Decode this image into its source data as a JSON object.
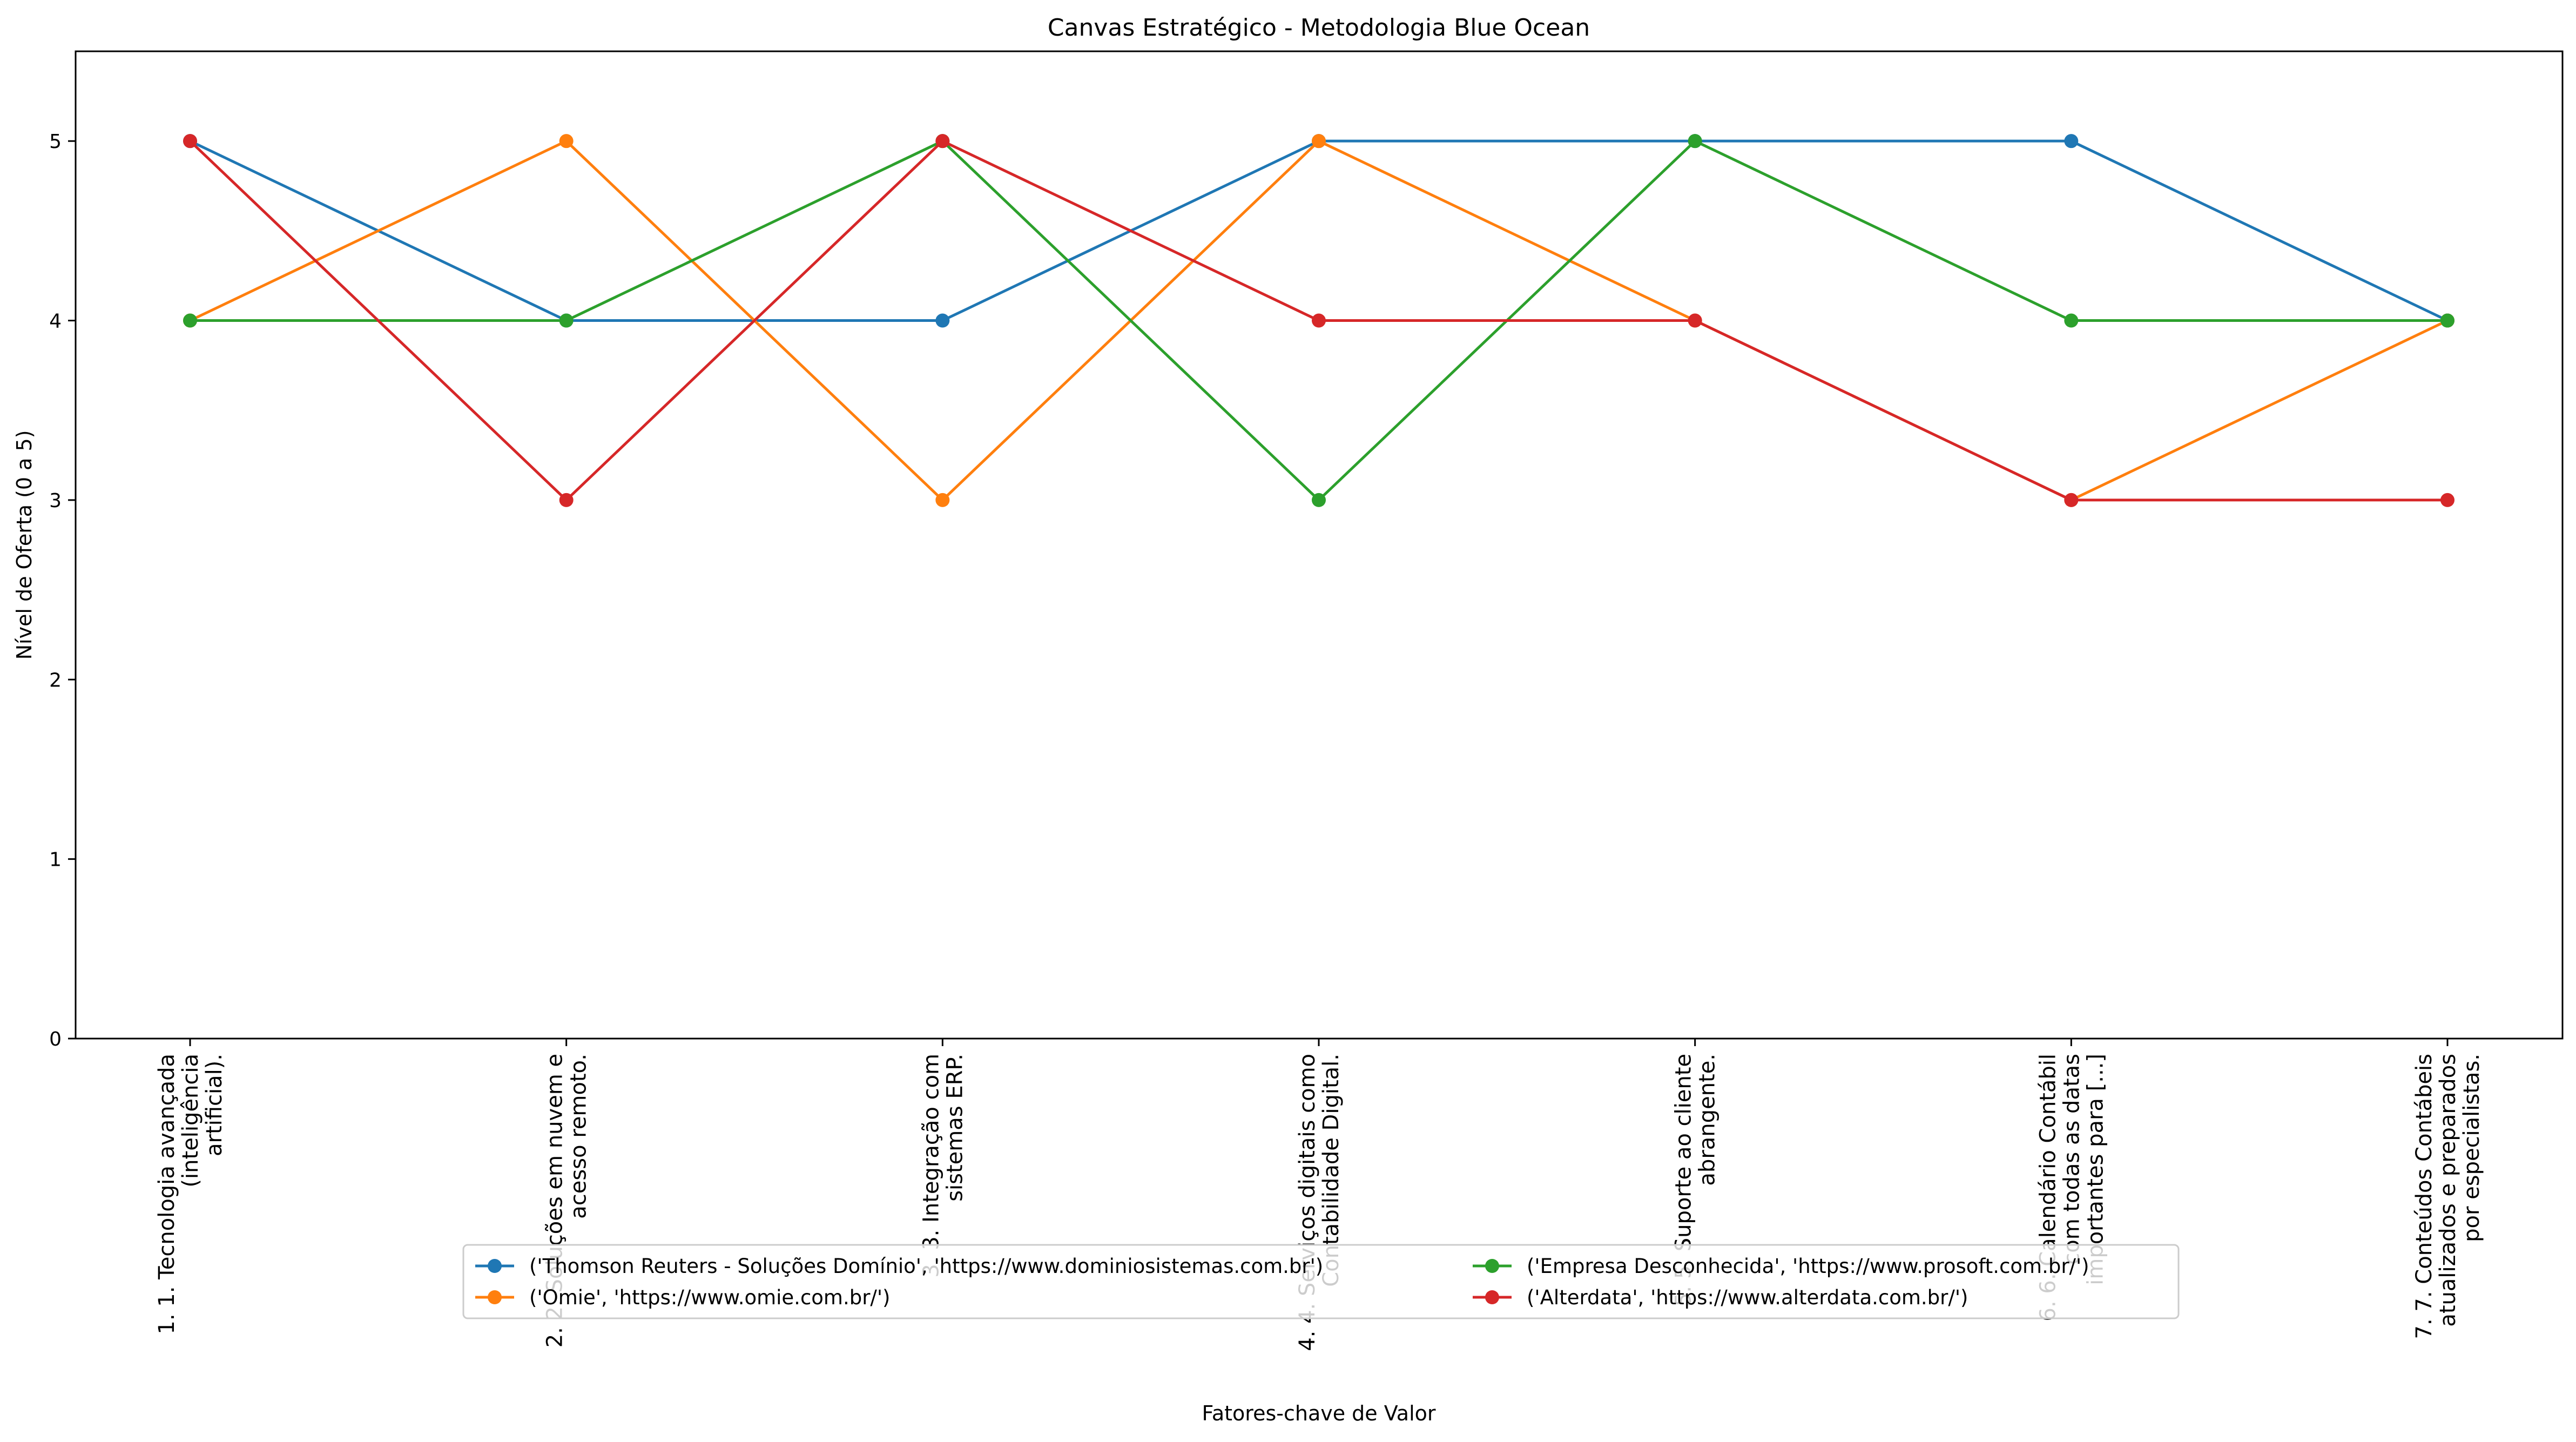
{
  "chart_data": {
    "type": "line",
    "title": "Canvas Estratégico - Metodologia Blue Ocean",
    "xlabel": "Fatores-chave de Valor",
    "ylabel": "Nível de Oferta (0 a 5)",
    "ylim": [
      0,
      5.5
    ],
    "yticks": [
      "0",
      "1",
      "2",
      "3",
      "4",
      "5"
    ],
    "categories": [
      [
        "1. 1. Tecnologia avançada",
        "(inteligência",
        "artificial)."
      ],
      [
        "2. 2. Soluções em nuvem e",
        "acesso remoto."
      ],
      [
        "3. 3. Integração com",
        "sistemas ERP."
      ],
      [
        "4. 4. Serviços digitais como",
        "Contabilidade Digital."
      ],
      [
        "5. 5. Suporte ao cliente",
        "abrangente."
      ],
      [
        "6. 6. Calendário Contábil",
        "com todas as datas",
        "importantes para [...]"
      ],
      [
        "7. 7. Conteúdos Contábeis",
        "atualizados e preparados",
        "por especialistas."
      ]
    ],
    "series": [
      {
        "name": "('Thomson Reuters - Soluções Domínio', 'https://www.dominiosistemas.com.br')",
        "color": "#1f77b4",
        "values": [
          5,
          4,
          4,
          5,
          5,
          5,
          4
        ]
      },
      {
        "name": "('Omie', 'https://www.omie.com.br/')",
        "color": "#ff7f0e",
        "values": [
          4,
          5,
          3,
          5,
          4,
          3,
          4
        ]
      },
      {
        "name": "('Empresa Desconhecida', 'https://www.prosoft.com.br/')",
        "color": "#2ca02c",
        "values": [
          4,
          4,
          5,
          3,
          5,
          4,
          4
        ]
      },
      {
        "name": "('Alterdata', 'https://www.alterdata.com.br/')",
        "color": "#d62728",
        "values": [
          5,
          3,
          5,
          4,
          4,
          3,
          3
        ]
      }
    ],
    "legend": {
      "placement": "lower-center",
      "columns": 2
    },
    "grid": false
  }
}
